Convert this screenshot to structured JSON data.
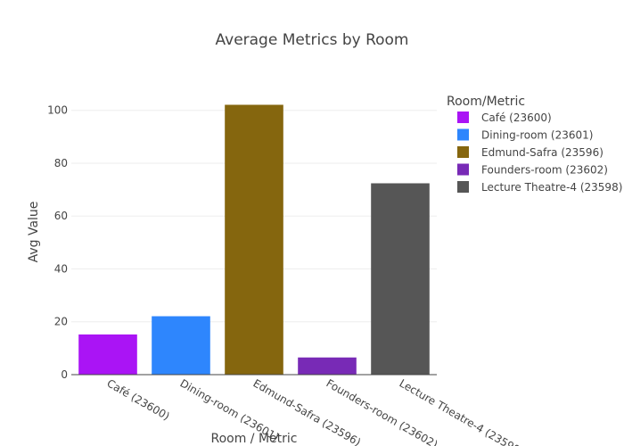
{
  "chart_data": {
    "type": "bar",
    "title": "Average Metrics by Room",
    "xlabel": "Room / Metric",
    "ylabel": "Avg Value",
    "legend_title": "Room/Metric",
    "legend_position": "top-right",
    "grid": true,
    "ylim": [
      0,
      108
    ],
    "yticks": [
      0,
      20,
      40,
      60,
      80,
      100
    ],
    "categories": [
      "Café (23600)",
      "Dining-room (23601)",
      "Edmund-Safra (23596)",
      "Founders-room (23602)",
      "Lecture Theatre-4 (23598)"
    ],
    "values": [
      15.2,
      22.1,
      102.1,
      6.5,
      72.4
    ],
    "colors": [
      "#aa14f5",
      "#2e86fd",
      "#85660e",
      "#782ab6",
      "#565656"
    ]
  }
}
